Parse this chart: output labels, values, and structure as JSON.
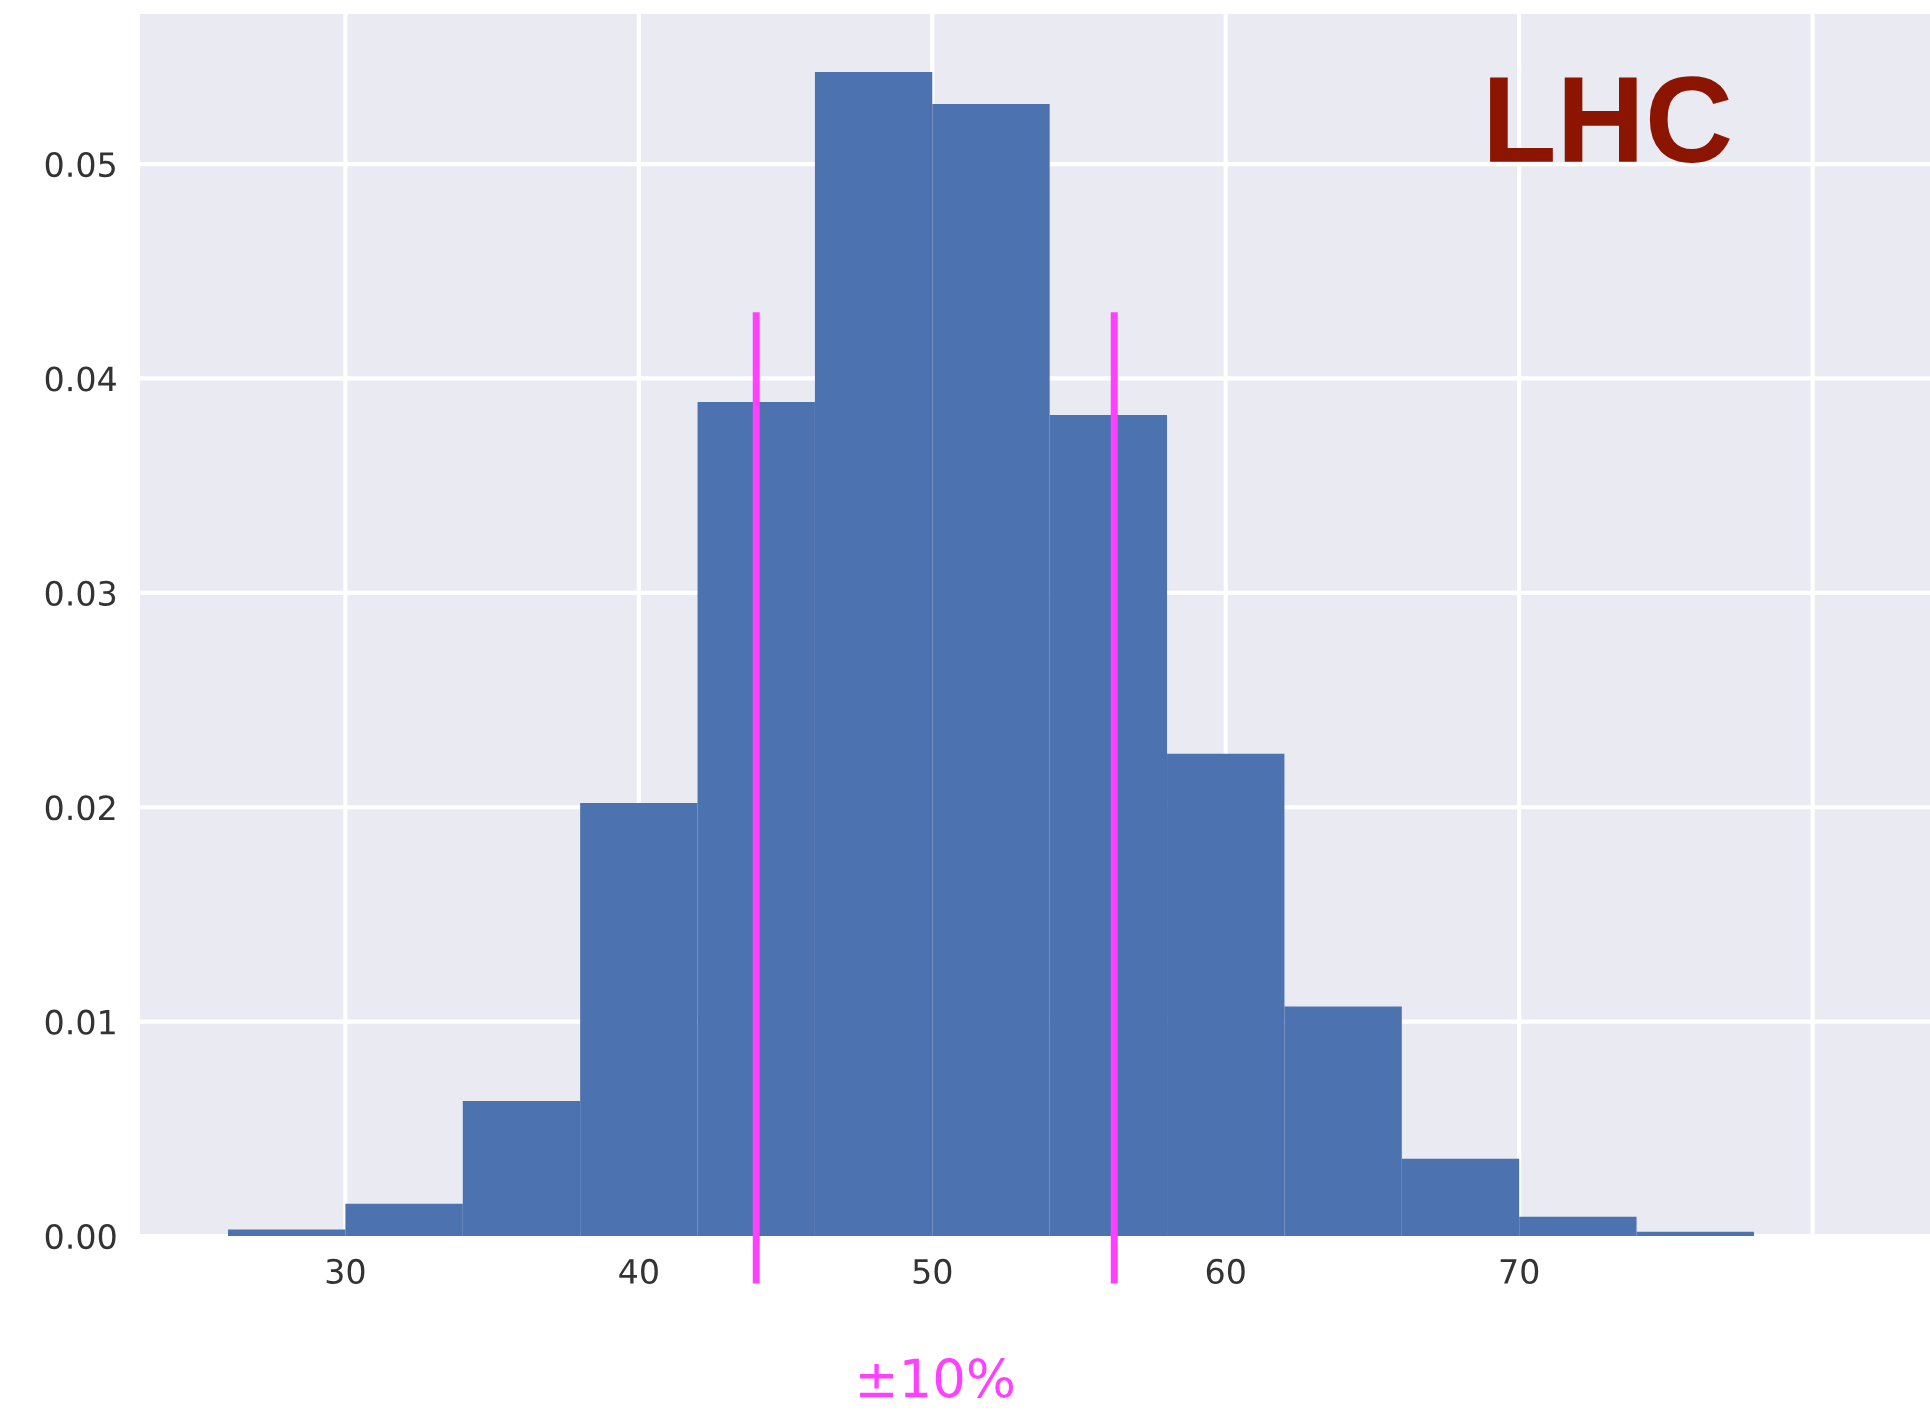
{
  "chart_data": [
    {
      "type": "histogram",
      "bins": [
        26,
        30,
        34,
        38,
        42,
        46,
        50,
        54,
        58,
        62,
        66,
        70,
        74,
        78
      ],
      "values": [
        0.0003,
        0.0015,
        0.0063,
        0.0202,
        0.0389,
        0.0543,
        0.0528,
        0.0383,
        0.0225,
        0.0107,
        0.0036,
        0.0009,
        0.0002
      ],
      "color": "#4c72b0",
      "xlim": [
        23.0,
        84.0
      ],
      "xticks": [
        30,
        40,
        50,
        60,
        70,
        {
          "value": 80,
          "label": null
        }
      ],
      "ylim": [
        0.0,
        0.057
      ],
      "yticks": [
        {
          "value": 0.0,
          "label": "0.00"
        },
        {
          "value": 0.01,
          "label": "0.01"
        },
        {
          "value": 0.02,
          "label": "0.02"
        },
        {
          "value": 0.03,
          "label": "0.03"
        },
        {
          "value": 0.04,
          "label": "0.04"
        },
        {
          "value": 0.05,
          "label": "0.05"
        }
      ],
      "grid": true,
      "ref_lines": [
        {
          "axis": "x",
          "value": 44.0,
          "color": "#ff40ff"
        },
        {
          "axis": "x",
          "value": 56.2,
          "color": "#ff40ff"
        }
      ],
      "annotations": [
        "LHC",
        "±10%"
      ]
    }
  ]
}
